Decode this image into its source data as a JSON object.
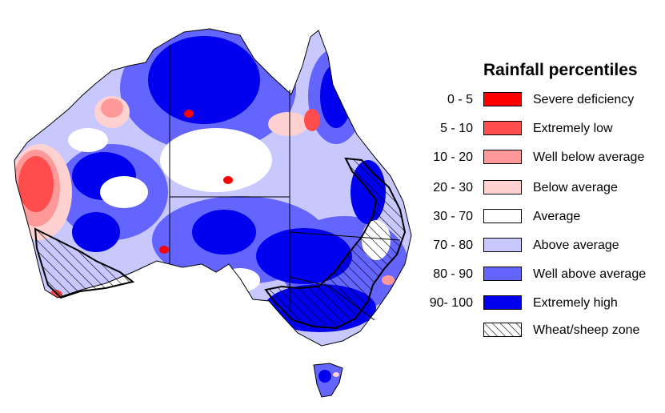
{
  "legend": {
    "title": "Rainfall percentiles",
    "items": [
      {
        "range": "0 - 5",
        "label": "Severe deficiency",
        "color": "#ff0000"
      },
      {
        "range": "5 - 10",
        "label": "Extremely low",
        "color": "#ff4d4d"
      },
      {
        "range": "10 - 20",
        "label": "Well below average",
        "color": "#ff9999"
      },
      {
        "range": "20 - 30",
        "label": "Below average",
        "color": "#ffd1d1"
      },
      {
        "range": "30 - 70",
        "label": "Average",
        "color": "#ffffff"
      },
      {
        "range": "70 - 80",
        "label": "Above average",
        "color": "#c8c8ff"
      },
      {
        "range": "80 - 90",
        "label": "Well above average",
        "color": "#6464ff"
      },
      {
        "range": "90- 100",
        "label": "Extremely high",
        "color": "#0000ee"
      }
    ],
    "hatch": {
      "label": "Wheat/sheep zone"
    }
  }
}
